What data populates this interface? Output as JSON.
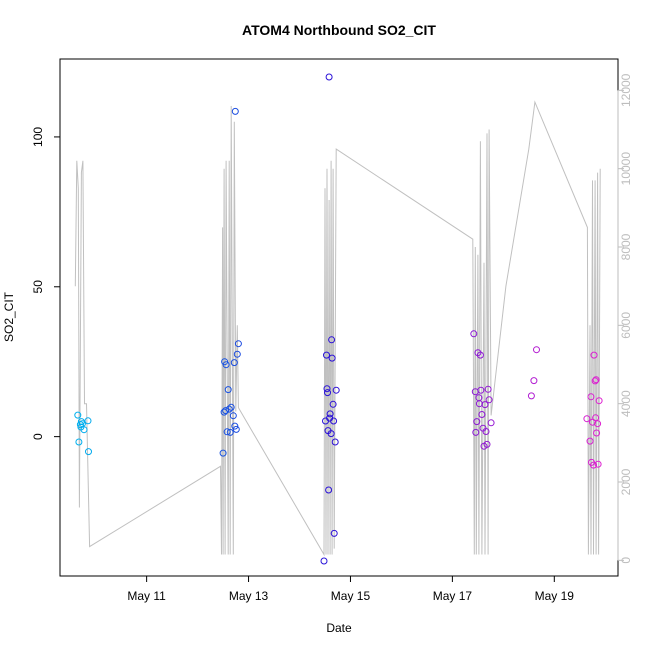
{
  "chart_data": {
    "type": "scatter",
    "title": "ATOM4 Northbound SO2_CIT",
    "xlabel": "Date",
    "ylabel": "SO2_CIT",
    "x_ticks": [
      "May 11",
      "May 13",
      "May 15",
      "May 17",
      "May 19"
    ],
    "x_tick_days": [
      11,
      13,
      15,
      17,
      19
    ],
    "xlim_days": [
      9.3,
      20.25
    ],
    "ylim": [
      -46.5,
      126
    ],
    "y_ticks": [
      0,
      50,
      100
    ],
    "y2lim": [
      -400,
      12800
    ],
    "y2_ticks": [
      0,
      2000,
      4000,
      6000,
      8000,
      10000,
      12000
    ],
    "grid": false,
    "colors": {
      "line": "#c0c0c0",
      "points_start": "#00b2ee",
      "points_mid": "#2a10d8",
      "points_end": "#e020d0"
    },
    "points": [
      {
        "day": 9.65,
        "y": 7.2
      },
      {
        "day": 9.67,
        "y": -1.8
      },
      {
        "day": 9.7,
        "y": 4
      },
      {
        "day": 9.71,
        "y": 3.2
      },
      {
        "day": 9.72,
        "y": 5
      },
      {
        "day": 9.74,
        "y": 4.3
      },
      {
        "day": 9.77,
        "y": 2.3
      },
      {
        "day": 9.85,
        "y": 5.3
      },
      {
        "day": 9.86,
        "y": -5
      },
      {
        "day": 12.5,
        "y": -5.5
      },
      {
        "day": 12.52,
        "y": 8.2
      },
      {
        "day": 12.53,
        "y": 25
      },
      {
        "day": 12.55,
        "y": 8.7
      },
      {
        "day": 12.56,
        "y": 24
      },
      {
        "day": 12.58,
        "y": 1.6
      },
      {
        "day": 12.6,
        "y": 15.7
      },
      {
        "day": 12.62,
        "y": 9.2
      },
      {
        "day": 12.64,
        "y": 1.4
      },
      {
        "day": 12.66,
        "y": 9.8
      },
      {
        "day": 12.7,
        "y": 7
      },
      {
        "day": 12.72,
        "y": 24.7
      },
      {
        "day": 12.73,
        "y": 3.5
      },
      {
        "day": 12.74,
        "y": 108.5
      },
      {
        "day": 12.76,
        "y": 2.4
      },
      {
        "day": 12.78,
        "y": 27.5
      },
      {
        "day": 12.8,
        "y": 31
      },
      {
        "day": 14.48,
        "y": -41.5
      },
      {
        "day": 14.51,
        "y": 5.2
      },
      {
        "day": 14.53,
        "y": 27.2
      },
      {
        "day": 14.54,
        "y": 16
      },
      {
        "day": 14.55,
        "y": 14.7
      },
      {
        "day": 14.56,
        "y": 2
      },
      {
        "day": 14.57,
        "y": -17.8
      },
      {
        "day": 14.58,
        "y": 120
      },
      {
        "day": 14.59,
        "y": 6.2
      },
      {
        "day": 14.6,
        "y": 7.6
      },
      {
        "day": 14.62,
        "y": 1
      },
      {
        "day": 14.63,
        "y": 32.3
      },
      {
        "day": 14.64,
        "y": 26.2
      },
      {
        "day": 14.66,
        "y": 10.8
      },
      {
        "day": 14.67,
        "y": 5.2
      },
      {
        "day": 14.68,
        "y": -32.3
      },
      {
        "day": 14.7,
        "y": -1.8
      },
      {
        "day": 14.72,
        "y": 15.5
      },
      {
        "day": 17.42,
        "y": 34.3
      },
      {
        "day": 17.45,
        "y": 15
      },
      {
        "day": 17.46,
        "y": 1.4
      },
      {
        "day": 17.48,
        "y": 5
      },
      {
        "day": 17.5,
        "y": 28
      },
      {
        "day": 17.52,
        "y": 13
      },
      {
        "day": 17.53,
        "y": 11
      },
      {
        "day": 17.55,
        "y": 27.2
      },
      {
        "day": 17.56,
        "y": 15.5
      },
      {
        "day": 17.58,
        "y": 7.4
      },
      {
        "day": 17.6,
        "y": 2.8
      },
      {
        "day": 17.62,
        "y": -3.2
      },
      {
        "day": 17.64,
        "y": 10.7
      },
      {
        "day": 17.66,
        "y": 1.7
      },
      {
        "day": 17.68,
        "y": -2.6
      },
      {
        "day": 17.7,
        "y": 15.8
      },
      {
        "day": 17.72,
        "y": 12.3
      },
      {
        "day": 17.76,
        "y": 4.6
      },
      {
        "day": 18.55,
        "y": 13.6
      },
      {
        "day": 18.6,
        "y": 18.7
      },
      {
        "day": 18.65,
        "y": 29
      },
      {
        "day": 19.64,
        "y": 6
      },
      {
        "day": 19.7,
        "y": -1.5
      },
      {
        "day": 19.72,
        "y": 13.3
      },
      {
        "day": 19.73,
        "y": -8.6
      },
      {
        "day": 19.75,
        "y": 4.8
      },
      {
        "day": 19.77,
        "y": -9.5
      },
      {
        "day": 19.78,
        "y": 27.2
      },
      {
        "day": 19.8,
        "y": 18.6
      },
      {
        "day": 19.81,
        "y": 6.3
      },
      {
        "day": 19.82,
        "y": 19
      },
      {
        "day": 19.83,
        "y": 1.2
      },
      {
        "day": 19.85,
        "y": 4.3
      },
      {
        "day": 19.86,
        "y": -9.2
      },
      {
        "day": 19.88,
        "y": 12
      }
    ],
    "line_series": [
      {
        "day": 9.6,
        "y2": 7000
      },
      {
        "day": 9.63,
        "y2": 10200
      },
      {
        "day": 9.66,
        "y2": 9500
      },
      {
        "day": 9.68,
        "y2": 1350
      },
      {
        "day": 9.72,
        "y2": 9900
      },
      {
        "day": 9.75,
        "y2": 10200
      },
      {
        "day": 9.78,
        "y2": 4000
      },
      {
        "day": 9.82,
        "y2": 4000
      },
      {
        "day": 9.88,
        "y2": 350
      },
      {
        "day": 12.45,
        "y2": 2400
      },
      {
        "day": 12.47,
        "y2": 150
      },
      {
        "day": 12.49,
        "y2": 8500
      },
      {
        "day": 12.5,
        "y2": 150
      },
      {
        "day": 12.52,
        "y2": 10000
      },
      {
        "day": 12.54,
        "y2": 150
      },
      {
        "day": 12.56,
        "y2": 10200
      },
      {
        "day": 12.6,
        "y2": 150
      },
      {
        "day": 12.62,
        "y2": 10200
      },
      {
        "day": 12.64,
        "y2": 150
      },
      {
        "day": 12.66,
        "y2": 11600
      },
      {
        "day": 12.7,
        "y2": 150
      },
      {
        "day": 12.72,
        "y2": 11200
      },
      {
        "day": 12.75,
        "y2": 3800
      },
      {
        "day": 12.78,
        "y2": 6000
      },
      {
        "day": 12.8,
        "y2": 3900
      },
      {
        "day": 14.48,
        "y2": 150
      },
      {
        "day": 14.5,
        "y2": 9500
      },
      {
        "day": 14.52,
        "y2": 150
      },
      {
        "day": 14.54,
        "y2": 10000
      },
      {
        "day": 14.56,
        "y2": 150
      },
      {
        "day": 14.58,
        "y2": 9200
      },
      {
        "day": 14.6,
        "y2": 150
      },
      {
        "day": 14.62,
        "y2": 10200
      },
      {
        "day": 14.64,
        "y2": 150
      },
      {
        "day": 14.66,
        "y2": 10000
      },
      {
        "day": 14.68,
        "y2": 300
      },
      {
        "day": 14.72,
        "y2": 10500
      },
      {
        "day": 17.4,
        "y2": 8200
      },
      {
        "day": 17.43,
        "y2": 150
      },
      {
        "day": 17.45,
        "y2": 8000
      },
      {
        "day": 17.47,
        "y2": 150
      },
      {
        "day": 17.5,
        "y2": 7800
      },
      {
        "day": 17.52,
        "y2": 150
      },
      {
        "day": 17.55,
        "y2": 10700
      },
      {
        "day": 17.58,
        "y2": 150
      },
      {
        "day": 17.62,
        "y2": 7600
      },
      {
        "day": 17.64,
        "y2": 150
      },
      {
        "day": 17.68,
        "y2": 10900
      },
      {
        "day": 17.7,
        "y2": 150
      },
      {
        "day": 17.72,
        "y2": 11000
      },
      {
        "day": 17.76,
        "y2": 3700
      },
      {
        "day": 18.05,
        "y2": 7000
      },
      {
        "day": 18.5,
        "y2": 10500
      },
      {
        "day": 18.62,
        "y2": 11700
      },
      {
        "day": 19.65,
        "y2": 8500
      },
      {
        "day": 19.67,
        "y2": 150
      },
      {
        "day": 19.7,
        "y2": 6000
      },
      {
        "day": 19.72,
        "y2": 150
      },
      {
        "day": 19.75,
        "y2": 9700
      },
      {
        "day": 19.77,
        "y2": 150
      },
      {
        "day": 19.8,
        "y2": 9700
      },
      {
        "day": 19.82,
        "y2": 150
      },
      {
        "day": 19.85,
        "y2": 9900
      },
      {
        "day": 19.87,
        "y2": 150
      },
      {
        "day": 19.9,
        "y2": 10000
      }
    ]
  }
}
